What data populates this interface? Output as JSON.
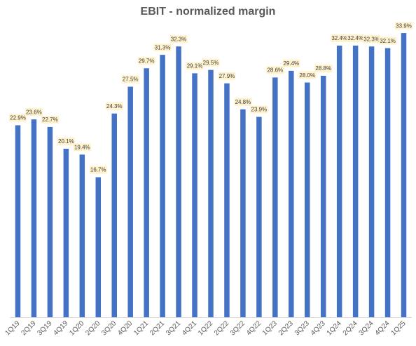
{
  "chart_data": {
    "type": "bar",
    "title": "EBIT - normalized margin",
    "categories": [
      "1Q19",
      "2Q19",
      "3Q19",
      "4Q19",
      "1Q20",
      "2Q20",
      "3Q20",
      "4Q20",
      "1Q21",
      "2Q21",
      "3Q21",
      "4Q21",
      "1Q22",
      "2Q22",
      "3Q22",
      "4Q22",
      "1Q23",
      "2Q23",
      "3Q23",
      "4Q23",
      "1Q24",
      "2Q24",
      "3Q24",
      "4Q24",
      "1Q25"
    ],
    "values": [
      22.9,
      23.6,
      22.7,
      20.1,
      19.4,
      16.7,
      24.3,
      27.5,
      29.7,
      31.3,
      32.3,
      29.1,
      29.5,
      27.9,
      24.8,
      23.9,
      28.6,
      29.4,
      28.0,
      28.8,
      32.4,
      32.4,
      32.3,
      32.1,
      33.9
    ],
    "data_labels": [
      "22.9%",
      "23.6%",
      "22.7%",
      "20.1%",
      "19.4%",
      "16.7%",
      "24.3%",
      "27.5%",
      "29.7%",
      "31.3%",
      "32.3%",
      "29.1%",
      "29.5%",
      "27.9%",
      "24.8%",
      "23.9%",
      "28.6%",
      "29.4%",
      "28.0%",
      "28.8%",
      "32.4%",
      "32.4%",
      "32.3%",
      "32.1%",
      "33.9%"
    ],
    "ylim": [
      0,
      36
    ],
    "xlabel": "",
    "ylabel": "",
    "grid": false,
    "legend": "none",
    "colors": {
      "bar": "#4472C4",
      "label_bg": "#FFF2CC",
      "axis": "#D9D9D9",
      "text": "#595959"
    }
  }
}
